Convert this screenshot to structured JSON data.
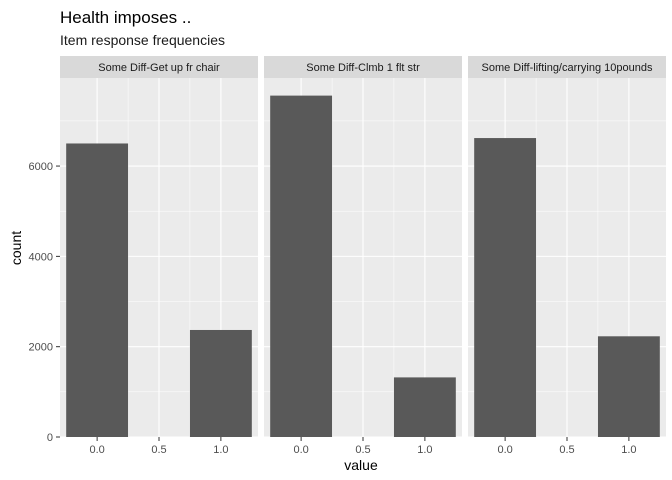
{
  "chart_data": {
    "type": "bar",
    "title": "Health imposes ..",
    "subtitle": "Item response frequencies",
    "xlabel": "value",
    "ylabel": "count",
    "xlim": [
      -0.3,
      1.3
    ],
    "ylim": [
      0,
      7950
    ],
    "x_ticks": [
      0.0,
      0.5,
      1.0
    ],
    "x_tick_labels": [
      "0.0",
      "0.5",
      "1.0"
    ],
    "y_ticks": [
      0,
      2000,
      4000,
      6000
    ],
    "y_tick_labels": [
      "0",
      "2000",
      "4000",
      "6000"
    ],
    "bar_width": 0.5,
    "grid": true,
    "bar_color": "#595959",
    "panel_background": "#ebebeb",
    "strip_background": "#d9d9d9",
    "grid_color": "#ffffff",
    "panels": [
      {
        "label": "Some Diff-Get up fr chair",
        "x": [
          0,
          1
        ],
        "values": [
          6500,
          2370
        ]
      },
      {
        "label": "Some Diff-Clmb 1 flt str",
        "x": [
          0,
          1
        ],
        "values": [
          7560,
          1320
        ]
      },
      {
        "label": "Some Diff-lifting/carrying 10pounds",
        "x": [
          0,
          1
        ],
        "values": [
          6620,
          2230
        ]
      }
    ]
  }
}
